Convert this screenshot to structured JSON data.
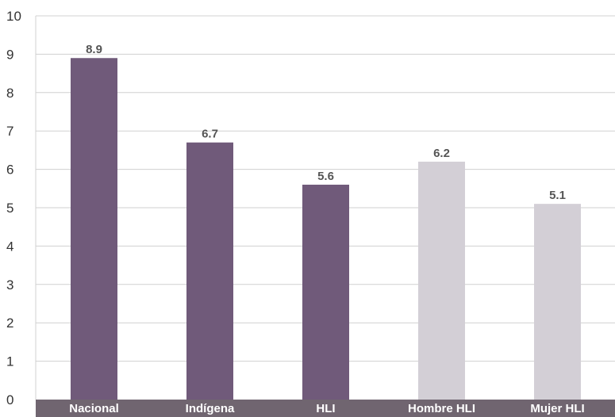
{
  "chart_data": {
    "type": "bar",
    "categories": [
      "Nacional",
      "Indígena",
      "HLI",
      "Hombre HLI",
      "Mujer HLI"
    ],
    "values": [
      8.9,
      6.7,
      5.6,
      6.2,
      5.1
    ],
    "value_labels": [
      "8.9",
      "6.7",
      "5.6",
      "6.2",
      "5.1"
    ],
    "bar_colors": [
      "#705a7a",
      "#705a7a",
      "#705a7a",
      "#d3cfd6",
      "#d3cfd6"
    ],
    "ylim": [
      0,
      10
    ],
    "yticks": [
      "0",
      "1",
      "2",
      "3",
      "4",
      "5",
      "6",
      "7",
      "8",
      "9",
      "10"
    ],
    "grid": true,
    "axis_band_color": "#706570",
    "title": "",
    "xlabel": "",
    "ylabel": ""
  }
}
